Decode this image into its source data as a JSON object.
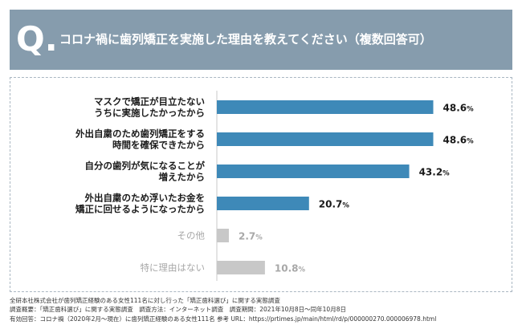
{
  "header": {
    "q_label": "Q.",
    "title": "コロナ禍に歯列矯正を実施した理由を教えてください（複数回答可）"
  },
  "colors": {
    "header_bg": "#869cad",
    "bar_primary": "#3e89b8",
    "bar_muted": "#c8c8c8",
    "label_primary": "#1a1a1a",
    "label_muted": "#a8a8a8"
  },
  "chart_data": {
    "type": "bar",
    "orientation": "horizontal",
    "title": "",
    "xlabel": "",
    "ylabel": "",
    "xlim": [
      0,
      55
    ],
    "grid": false,
    "legend": "none",
    "unit": "%",
    "categories": [
      [
        "マスクで矯正が目立たない",
        "うちに実施したかったから"
      ],
      [
        "外出自粛のため歯列矯正をする",
        "時間を確保できたから"
      ],
      [
        "自分の歯列が気になることが",
        "増えたから"
      ],
      [
        "外出自粛のため浮いたお金を",
        "矯正に回せるようになったから"
      ],
      [
        "その他"
      ],
      [
        "特に理由はない"
      ]
    ],
    "values": [
      48.6,
      48.6,
      43.2,
      20.7,
      2.7,
      10.8
    ],
    "highlighted": [
      true,
      true,
      true,
      true,
      false,
      false
    ]
  },
  "footer": {
    "lines": [
      "全研本社株式会社が歯列矯正経験のある女性111名に対し行った「矯正歯科選び」に関する実態調査",
      "調査概要：「矯正歯科選び」に関する実態調査　調査方法：インターネット調査　調査期間：2021年10月8日〜同年10月8日",
      "有効回答：コロナ禍（2020年2月〜現在）に歯列矯正経験のある女性111名 参考 URL：https://prtimes.jp/main/html/rd/p/000000270.000006978.html"
    ]
  }
}
